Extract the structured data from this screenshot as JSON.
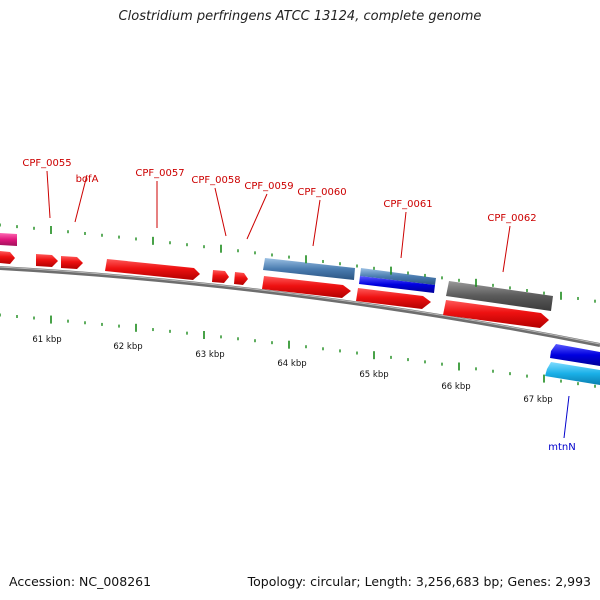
{
  "title": "Clostridium perfringens ATCC 13124, complete genome",
  "footer": {
    "accession": "Accession: NC_008261",
    "summary": "Topology: circular; Length: 3,256,683 bp; Genes: 2,993"
  },
  "map": {
    "colors": {
      "backbone": "#7a7a7a",
      "tick": "#1a8a1a",
      "cds": "#ee1111",
      "gene_label": "#cc0000",
      "reverse_label": "#0000cc",
      "steelblue": "#4a7cb0",
      "darkblue": "#0000e0",
      "grey": "#5a5a5a",
      "magenta": "#e0187c",
      "cyan": "#1ab0e8"
    },
    "scale_labels": [
      "61 kbp",
      "62 kbp",
      "63 kbp",
      "64 kbp",
      "65 kbp",
      "66 kbp",
      "67 kbp"
    ],
    "gene_labels": [
      {
        "name": "CPF_0055",
        "strand": "forward"
      },
      {
        "name": "bofA",
        "strand": "forward"
      },
      {
        "name": "CPF_0057",
        "strand": "forward"
      },
      {
        "name": "CPF_0058",
        "strand": "forward"
      },
      {
        "name": "CPF_0059",
        "strand": "forward"
      },
      {
        "name": "CPF_0060",
        "strand": "forward"
      },
      {
        "name": "CPF_0061",
        "strand": "forward"
      },
      {
        "name": "CPF_0062",
        "strand": "forward"
      },
      {
        "name": "mtnN",
        "strand": "reverse"
      }
    ]
  }
}
